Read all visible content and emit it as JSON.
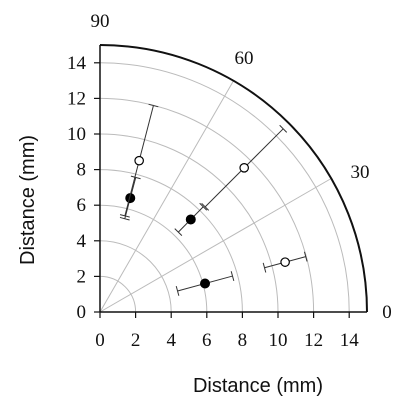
{
  "chart_data": {
    "type": "scatter",
    "coordinate_system": "polar quadrant (Cartesian axes)",
    "xlabel": "Distance (mm)",
    "ylabel": "Distance (mm)",
    "xlim": [
      0,
      15
    ],
    "ylim": [
      0,
      15
    ],
    "x_ticks": [
      "0",
      "2",
      "4",
      "6",
      "8",
      "10",
      "12",
      "14"
    ],
    "y_ticks": [
      "0",
      "2",
      "4",
      "6",
      "8",
      "10",
      "12",
      "14"
    ],
    "angle_labels": [
      "90",
      "60",
      "30",
      "0"
    ],
    "angle_values_deg": [
      90,
      60,
      30,
      0
    ],
    "radial_rings_mm": [
      2,
      4,
      6,
      8,
      10,
      12,
      14
    ],
    "outer_radius_mm": 15,
    "series": [
      {
        "marker": "filled",
        "points": [
          {
            "x": 1.7,
            "y": 6.4,
            "err_r": 1.2
          },
          {
            "x": 5.1,
            "y": 5.2,
            "err_r": 1.0
          },
          {
            "x": 5.9,
            "y": 1.6,
            "err_r": 1.6
          }
        ]
      },
      {
        "marker": "open",
        "points": [
          {
            "x": 2.2,
            "y": 8.5,
            "err_r": 3.2
          },
          {
            "x": 8.1,
            "y": 8.1,
            "err_r": 3.1
          },
          {
            "x": 10.4,
            "y": 2.8,
            "err_r": 1.2
          }
        ]
      }
    ],
    "grid": true,
    "colors": {
      "axes": "#111111",
      "grid": "#bbbbbb",
      "marker": "#000000"
    }
  }
}
